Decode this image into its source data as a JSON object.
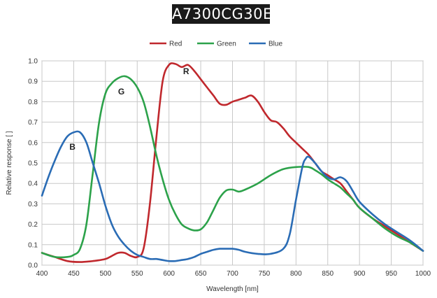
{
  "chart_data": {
    "type": "line",
    "title": "A7300CG30E",
    "xlabel": "Wavelength [nm]",
    "ylabel": "Relative response [ ]",
    "xlim": [
      400,
      1000
    ],
    "ylim": [
      0,
      1.0
    ],
    "xticks": [
      "400",
      "450",
      "500",
      "550",
      "600",
      "650",
      "700",
      "750",
      "800",
      "850",
      "900",
      "950",
      "1000"
    ],
    "yticks": [
      "0.0",
      "0.1",
      "0.2",
      "0.3",
      "0.4",
      "0.5",
      "0.6",
      "0.7",
      "0.8",
      "0.9",
      "1.0"
    ],
    "grid": true,
    "legend_position": "top-center",
    "series": [
      {
        "name": "Red",
        "label": "R",
        "color": "#c0282d",
        "x": [
          400,
          420,
          440,
          460,
          480,
          500,
          510,
          520,
          530,
          540,
          550,
          560,
          570,
          580,
          590,
          600,
          610,
          620,
          630,
          640,
          650,
          660,
          670,
          680,
          690,
          700,
          710,
          720,
          730,
          740,
          750,
          760,
          770,
          780,
          790,
          800,
          810,
          820,
          830,
          840,
          850,
          860,
          870,
          880,
          890,
          900,
          920,
          940,
          960,
          980,
          1000
        ],
        "y": [
          0.06,
          0.04,
          0.02,
          0.015,
          0.02,
          0.03,
          0.045,
          0.06,
          0.06,
          0.045,
          0.04,
          0.08,
          0.3,
          0.62,
          0.9,
          0.98,
          0.985,
          0.97,
          0.98,
          0.95,
          0.91,
          0.87,
          0.83,
          0.79,
          0.785,
          0.8,
          0.81,
          0.82,
          0.83,
          0.8,
          0.75,
          0.71,
          0.7,
          0.67,
          0.63,
          0.6,
          0.57,
          0.54,
          0.5,
          0.46,
          0.44,
          0.42,
          0.4,
          0.36,
          0.32,
          0.28,
          0.23,
          0.19,
          0.15,
          0.11,
          0.07
        ]
      },
      {
        "name": "Green",
        "label": "G",
        "color": "#2ca24a",
        "x": [
          400,
          420,
          440,
          450,
          460,
          470,
          480,
          490,
          500,
          510,
          520,
          530,
          540,
          550,
          560,
          570,
          580,
          590,
          600,
          610,
          620,
          630,
          640,
          650,
          660,
          670,
          680,
          690,
          700,
          710,
          720,
          740,
          760,
          780,
          800,
          820,
          830,
          840,
          850,
          860,
          870,
          880,
          890,
          900,
          920,
          940,
          960,
          980,
          1000
        ],
        "y": [
          0.06,
          0.04,
          0.04,
          0.05,
          0.08,
          0.2,
          0.45,
          0.7,
          0.84,
          0.89,
          0.915,
          0.925,
          0.91,
          0.87,
          0.8,
          0.68,
          0.54,
          0.42,
          0.32,
          0.25,
          0.2,
          0.18,
          0.17,
          0.175,
          0.21,
          0.27,
          0.33,
          0.365,
          0.37,
          0.36,
          0.37,
          0.4,
          0.44,
          0.47,
          0.48,
          0.48,
          0.465,
          0.445,
          0.42,
          0.4,
          0.38,
          0.35,
          0.32,
          0.28,
          0.23,
          0.18,
          0.14,
          0.11,
          0.07
        ]
      },
      {
        "name": "Blue",
        "label": "B",
        "color": "#2a6cb5",
        "x": [
          400,
          410,
          420,
          430,
          440,
          450,
          460,
          470,
          480,
          490,
          500,
          510,
          520,
          530,
          540,
          550,
          560,
          570,
          580,
          590,
          600,
          610,
          620,
          630,
          640,
          650,
          660,
          670,
          680,
          690,
          700,
          710,
          720,
          740,
          760,
          780,
          790,
          800,
          810,
          815,
          820,
          830,
          840,
          850,
          860,
          870,
          880,
          890,
          900,
          920,
          940,
          960,
          980,
          1000
        ],
        "y": [
          0.34,
          0.43,
          0.51,
          0.58,
          0.63,
          0.65,
          0.65,
          0.6,
          0.5,
          0.4,
          0.29,
          0.2,
          0.14,
          0.1,
          0.07,
          0.05,
          0.04,
          0.03,
          0.03,
          0.025,
          0.02,
          0.02,
          0.025,
          0.03,
          0.04,
          0.055,
          0.065,
          0.075,
          0.08,
          0.08,
          0.08,
          0.075,
          0.065,
          0.055,
          0.055,
          0.08,
          0.15,
          0.32,
          0.48,
          0.52,
          0.53,
          0.5,
          0.46,
          0.43,
          0.42,
          0.43,
          0.41,
          0.36,
          0.31,
          0.25,
          0.2,
          0.16,
          0.12,
          0.07
        ]
      }
    ]
  }
}
